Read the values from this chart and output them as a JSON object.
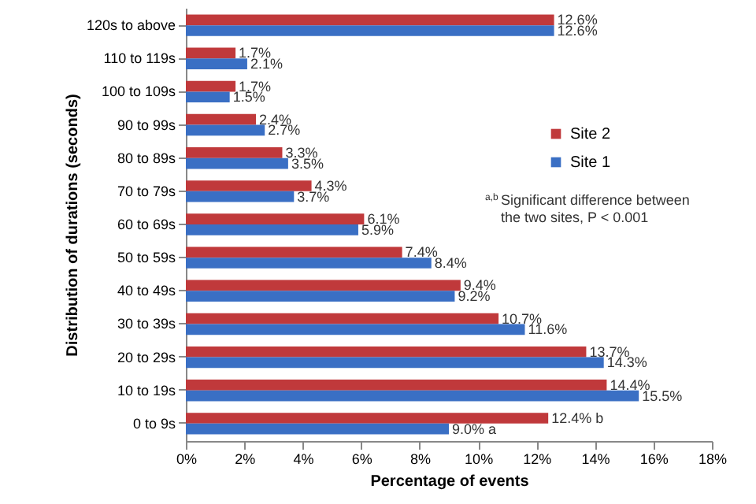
{
  "chart_data": {
    "type": "bar",
    "orientation": "horizontal",
    "xlabel": "Percentage of events",
    "ylabel": "Distribution of durations (seconds)",
    "categories": [
      "120s to above",
      "110 to 119s",
      "100 to 109s",
      "90 to 99s",
      "80 to 89s",
      "70 to 79s",
      "60 to 69s",
      "50 to 59s",
      "40 to 49s",
      "30 to 39s",
      "20 to 29s",
      "10 to 19s",
      "0 to 9s"
    ],
    "series": [
      {
        "name": "Site 2",
        "color": "#c0393b",
        "values": [
          12.6,
          1.7,
          1.7,
          2.4,
          3.3,
          4.3,
          6.1,
          7.4,
          9.4,
          10.7,
          13.7,
          14.4,
          12.4
        ],
        "value_labels": [
          "12.6%",
          "1.7%",
          "1.7%",
          "2.4%",
          "3.3%",
          "4.3%",
          "6.1%",
          "7.4%",
          "9.4%",
          "10.7%",
          "13.7%",
          "14.4%",
          "12.4% b"
        ]
      },
      {
        "name": "Site 1",
        "color": "#3a6fc4",
        "values": [
          12.6,
          2.1,
          1.5,
          2.7,
          3.5,
          3.7,
          5.9,
          8.4,
          9.2,
          11.6,
          14.3,
          15.5,
          9.0
        ],
        "value_labels": [
          "12.6%",
          "2.1%",
          "1.5%",
          "2.7%",
          "3.5%",
          "3.7%",
          "5.9%",
          "8.4%",
          "9.2%",
          "11.6%",
          "14.3%",
          "15.5%",
          "9.0%  a"
        ]
      }
    ],
    "xlim": [
      0,
      18
    ],
    "xticks": [
      {
        "value": 0,
        "label": "0%"
      },
      {
        "value": 2,
        "label": "2%"
      },
      {
        "value": 4,
        "label": "4%"
      },
      {
        "value": 6,
        "label": "6%"
      },
      {
        "value": 8,
        "label": "8%"
      },
      {
        "value": 10,
        "label": "10%"
      },
      {
        "value": 12,
        "label": "12%"
      },
      {
        "value": 14,
        "label": "14%"
      },
      {
        "value": 16,
        "label": "16%"
      },
      {
        "value": 18,
        "label": "18%"
      }
    ],
    "grid": false,
    "legend": "right",
    "annotations": [
      "$^{a,b}$ Significant difference between the two sites, P < 0.001"
    ]
  }
}
